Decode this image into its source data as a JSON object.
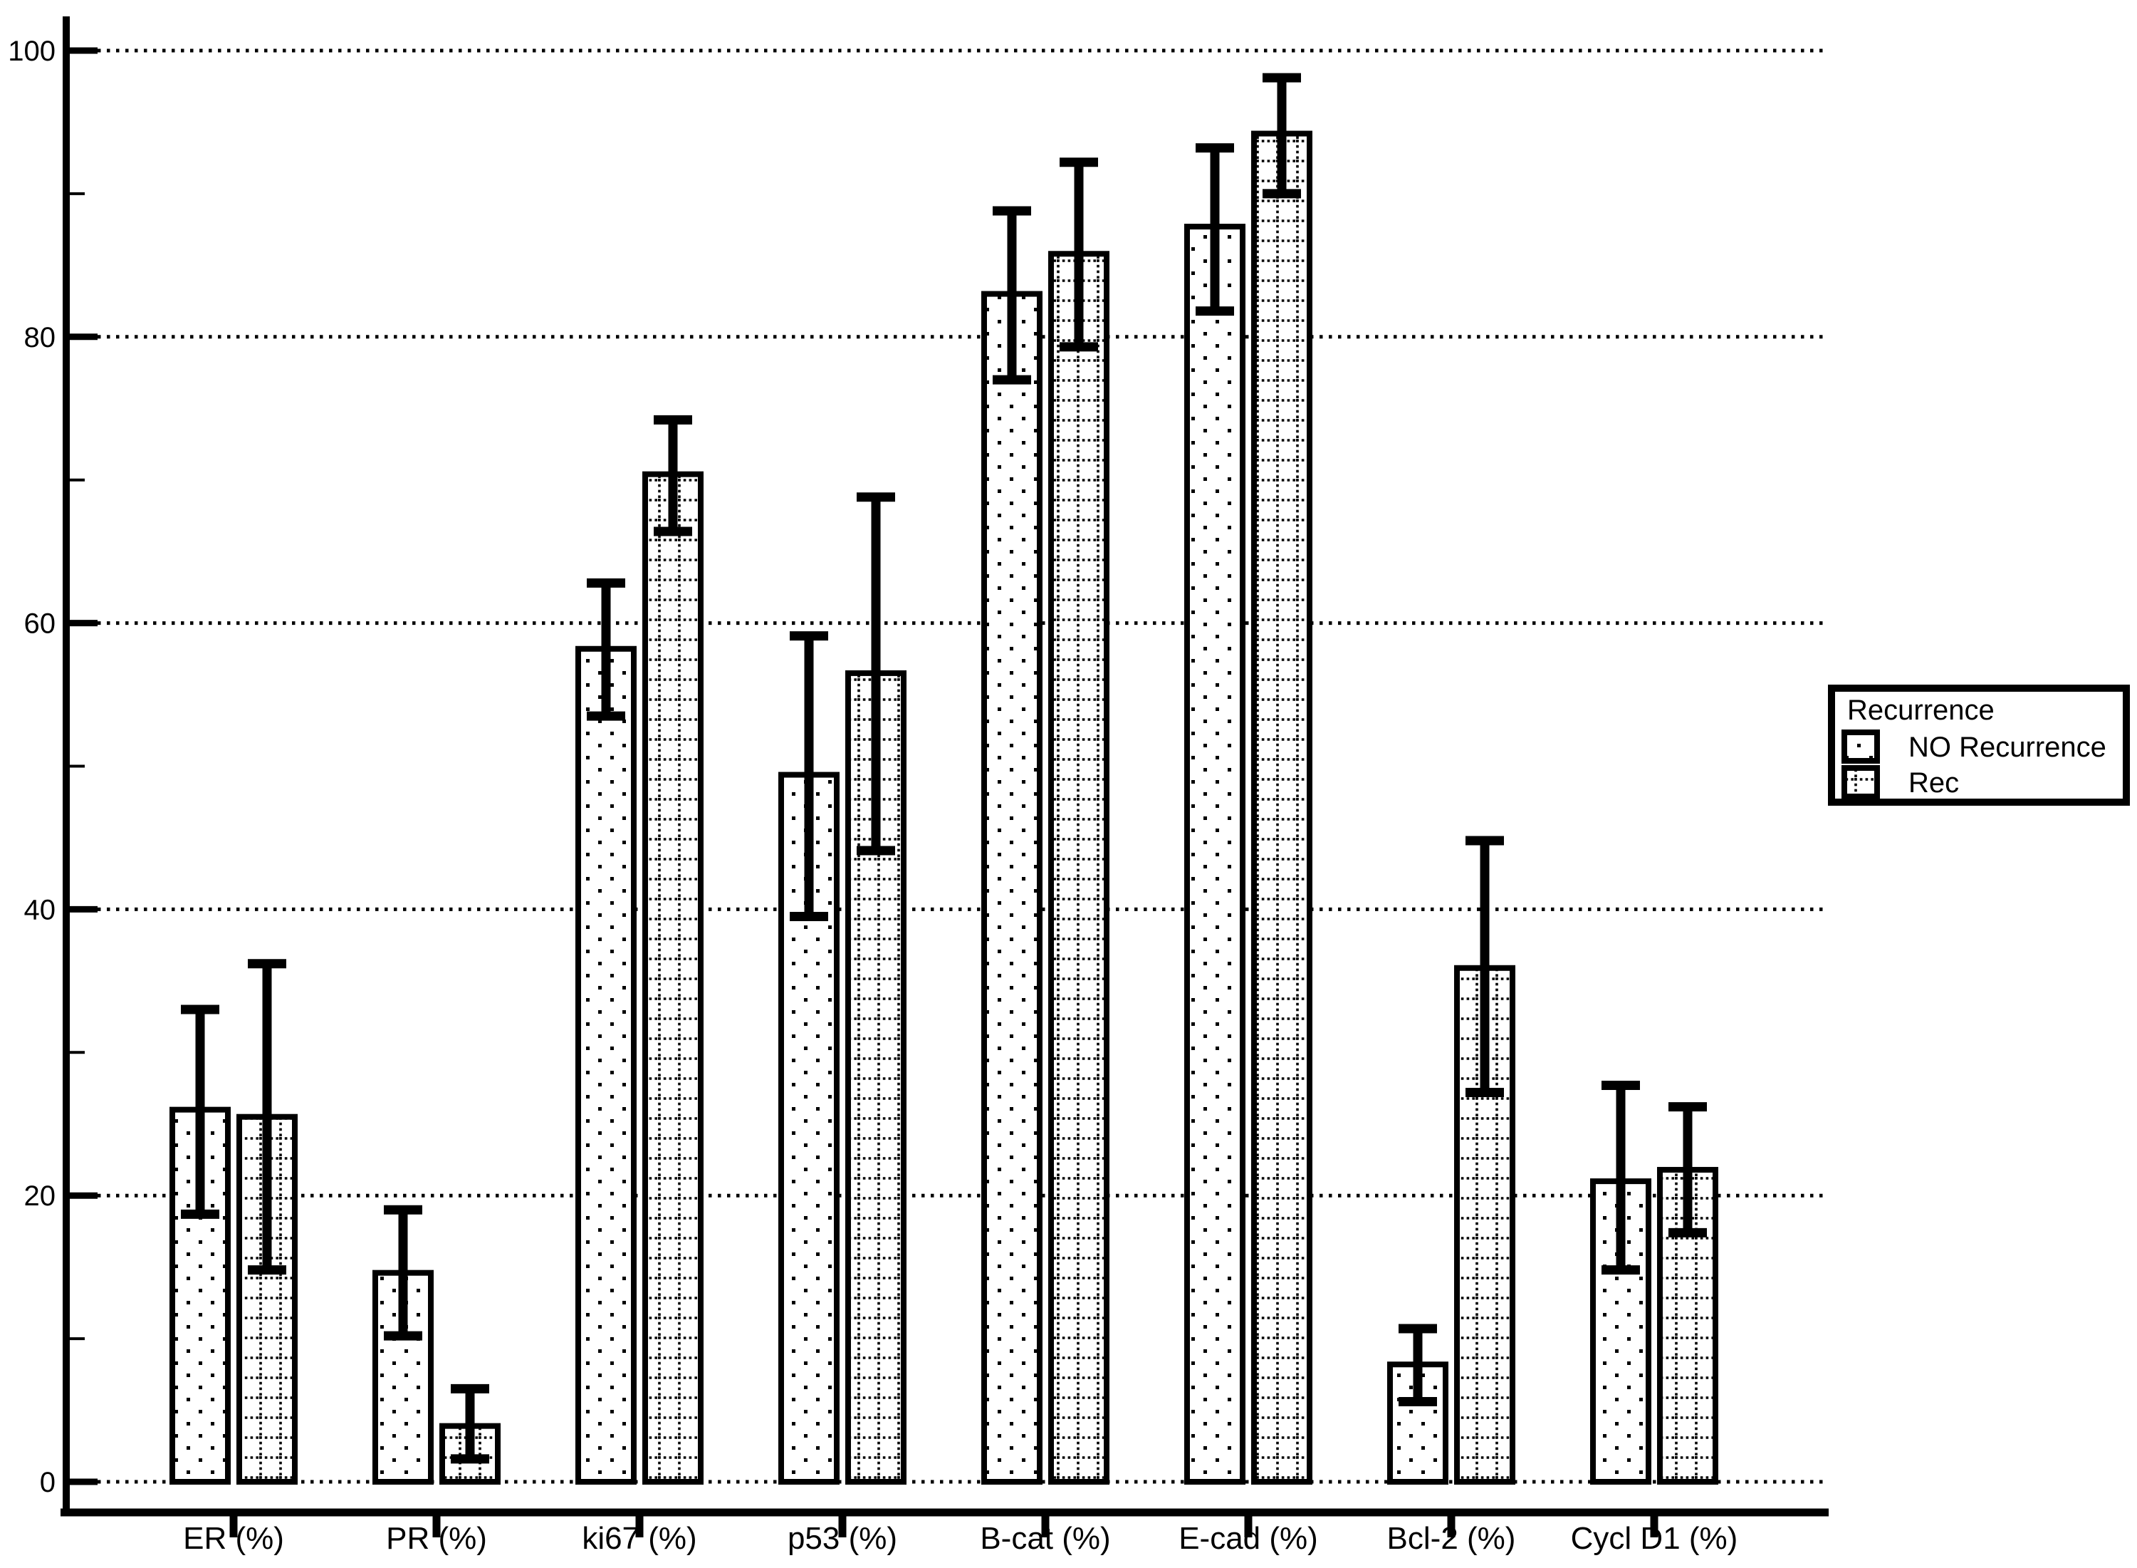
{
  "chart_data": {
    "type": "bar",
    "title": "",
    "categories": [
      "ER (%)",
      "PR (%)",
      "ki67 (%)",
      "p53 (%)",
      "B-cat (%)",
      "E-cad (%)",
      "Bcl-2 (%)",
      "Cycl D1 (%)"
    ],
    "series": [
      {
        "name": "NO Recurrence",
        "pattern": "sparse-dots",
        "values": [
          26.0,
          14.6,
          58.2,
          49.4,
          83.0,
          87.7,
          8.2,
          21.0
        ],
        "err_low": [
          18.7,
          10.2,
          53.5,
          39.5,
          77.0,
          81.8,
          5.6,
          14.8
        ],
        "err_high": [
          33.0,
          19.0,
          62.8,
          59.1,
          88.8,
          93.2,
          10.7,
          27.7
        ]
      },
      {
        "name": "Rec",
        "pattern": "dotted-grid",
        "values": [
          25.5,
          3.9,
          70.4,
          56.5,
          85.8,
          94.2,
          35.9,
          21.8
        ],
        "err_low": [
          14.8,
          1.6,
          66.4,
          44.1,
          79.3,
          90.0,
          27.2,
          17.4
        ],
        "err_high": [
          36.2,
          6.5,
          74.2,
          68.8,
          92.2,
          98.1,
          44.8,
          26.2
        ]
      }
    ],
    "legend": {
      "title": "Recurrence",
      "position": "right"
    },
    "xlabel": "",
    "ylabel": "",
    "y_axis": {
      "min": 0,
      "max": 100,
      "major_ticks": [
        0,
        20,
        40,
        60,
        80,
        100
      ],
      "minor_tick_step": 10
    },
    "grid": "dotted-horizontal",
    "colors": {
      "foreground": "#000000",
      "background": "#ffffff"
    }
  }
}
